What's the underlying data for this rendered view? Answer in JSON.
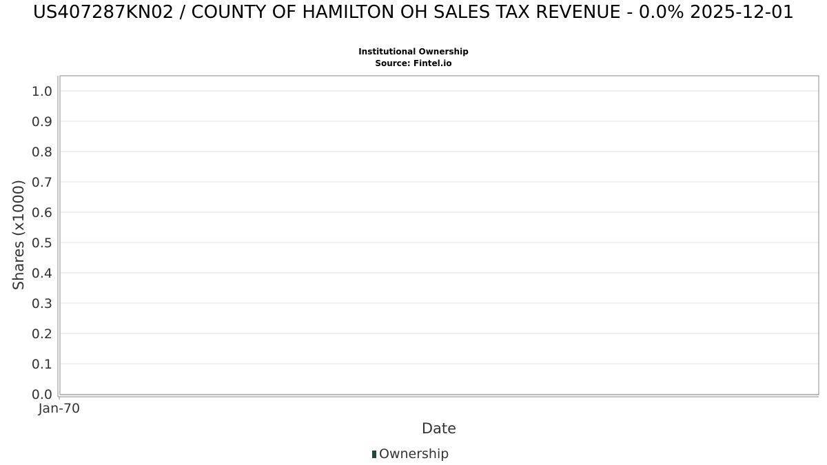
{
  "chart_data": {
    "type": "bar",
    "title": "US407287KN02 / COUNTY OF HAMILTON OH SALES TAX REVENUE - 0.0% 2025-12-01",
    "subtitle": "Institutional Ownership",
    "source": "Source: Fintel.io",
    "xlabel": "Date",
    "ylabel": "Shares (x1000)",
    "ylim": [
      0.0,
      1.0
    ],
    "y_ticks": [
      "0.0",
      "0.1",
      "0.2",
      "0.3",
      "0.4",
      "0.5",
      "0.6",
      "0.7",
      "0.8",
      "0.9",
      "1.0"
    ],
    "x_ticks": [
      "Jan-70"
    ],
    "grid": true,
    "legend_position": "bottom",
    "series": [
      {
        "name": "Ownership",
        "color": "#1e4d2b",
        "x": [],
        "values": []
      }
    ]
  }
}
